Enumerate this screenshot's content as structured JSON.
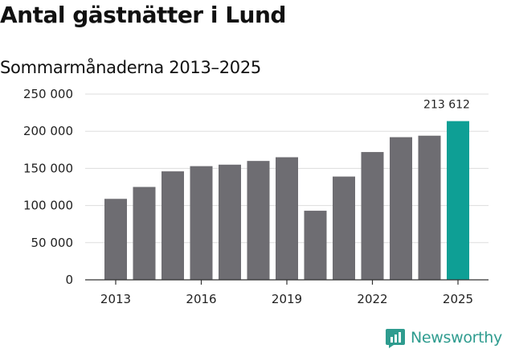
{
  "title": "Antal gästnätter i Lund",
  "subtitle": "Sommarmånaderna 2013–2025",
  "logo": {
    "text": "Newsworthy",
    "icon": "newsworthy-chart-icon",
    "color": "#2f9c8f"
  },
  "colors": {
    "bar": "#6e6d72",
    "highlight": "#0e9f95",
    "grid": "#dddddd"
  },
  "chart_data": {
    "type": "bar",
    "title": "Antal gästnätter i Lund",
    "subtitle": "Sommarmånaderna 2013–2025",
    "xlabel": "",
    "ylabel": "",
    "categories": [
      "2013",
      "2014",
      "2015",
      "2016",
      "2017",
      "2018",
      "2019",
      "2020",
      "2021",
      "2022",
      "2023",
      "2024",
      "2025"
    ],
    "values": [
      109000,
      125000,
      146000,
      153000,
      155000,
      160000,
      165000,
      93000,
      139000,
      172000,
      192000,
      194000,
      213612
    ],
    "highlight_index": 12,
    "data_labels": [
      {
        "index": 12,
        "text": "213 612"
      }
    ],
    "x_tick_labels": [
      "2013",
      "2016",
      "2019",
      "2022",
      "2025"
    ],
    "y_ticks": [
      0,
      50000,
      100000,
      150000,
      200000,
      250000
    ],
    "y_tick_labels": [
      "0",
      "50 000",
      "100 000",
      "150 000",
      "200 000",
      "250 000"
    ],
    "ylim": [
      0,
      250000
    ],
    "grid": true,
    "legend": "none"
  }
}
